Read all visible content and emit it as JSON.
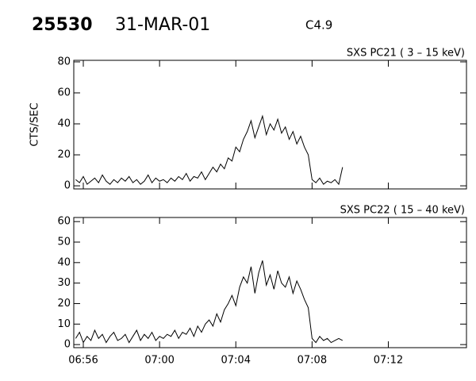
{
  "header": {
    "id": "25530",
    "date": "31-MAR-01",
    "class": "C4.9"
  },
  "chart_data": [
    {
      "type": "line",
      "title": "SXS PC21  ( 3 – 15 keV)",
      "ylabel": "CTS/SEC",
      "x": [
        415.6,
        415.8,
        416.0,
        416.2,
        416.4,
        416.6,
        416.8,
        417.0,
        417.2,
        417.4,
        417.6,
        417.8,
        418.0,
        418.2,
        418.4,
        418.6,
        418.8,
        419.0,
        419.2,
        419.4,
        419.6,
        419.8,
        420.0,
        420.2,
        420.4,
        420.6,
        420.8,
        421.0,
        421.2,
        421.4,
        421.6,
        421.8,
        422.0,
        422.2,
        422.4,
        422.6,
        422.8,
        423.0,
        423.2,
        423.4,
        423.6,
        423.8,
        424.0,
        424.2,
        424.4,
        424.6,
        424.8,
        425.0,
        425.2,
        425.4,
        425.6,
        425.8,
        426.0,
        426.2,
        426.4,
        426.6,
        426.8,
        427.0,
        427.2,
        427.4,
        427.6,
        427.8,
        428.0,
        428.2,
        428.4,
        428.6,
        428.8,
        429.0,
        429.2,
        429.4,
        429.6
      ],
      "series": [
        {
          "color": "#000000",
          "values": [
            4,
            2,
            6,
            1,
            3,
            5,
            2,
            7,
            3,
            1,
            4,
            2,
            5,
            3,
            6,
            2,
            4,
            1,
            3,
            7,
            2,
            5,
            3,
            4,
            2,
            5,
            3,
            6,
            4,
            8,
            3,
            6,
            5,
            9,
            4,
            8,
            12,
            9,
            14,
            11,
            18,
            16,
            25,
            22,
            30,
            35,
            42,
            31,
            38,
            45,
            33,
            40,
            36,
            43,
            34,
            38,
            30,
            35,
            27,
            32,
            25,
            20,
            4,
            2,
            5,
            1,
            3,
            2,
            4,
            1,
            12
          ]
        }
      ],
      "xlim": [
        415.5,
        436.1
      ],
      "xticks": [
        {
          "value": 416,
          "label": "06:56"
        },
        {
          "value": 420,
          "label": "07:00"
        },
        {
          "value": 424,
          "label": "07:04"
        },
        {
          "value": 428,
          "label": "07:08"
        },
        {
          "value": 432,
          "label": "07:12"
        }
      ],
      "ylim": [
        -2,
        81
      ],
      "yticks": [
        0,
        20,
        40,
        60,
        80
      ]
    },
    {
      "type": "line",
      "title": "SXS PC22  ( 15 – 40 keV)",
      "x": [
        415.6,
        415.8,
        416.0,
        416.2,
        416.4,
        416.6,
        416.8,
        417.0,
        417.2,
        417.4,
        417.6,
        417.8,
        418.0,
        418.2,
        418.4,
        418.6,
        418.8,
        419.0,
        419.2,
        419.4,
        419.6,
        419.8,
        420.0,
        420.2,
        420.4,
        420.6,
        420.8,
        421.0,
        421.2,
        421.4,
        421.6,
        421.8,
        422.0,
        422.2,
        422.4,
        422.6,
        422.8,
        423.0,
        423.2,
        423.4,
        423.6,
        423.8,
        424.0,
        424.2,
        424.4,
        424.6,
        424.8,
        425.0,
        425.2,
        425.4,
        425.6,
        425.8,
        426.0,
        426.2,
        426.4,
        426.6,
        426.8,
        427.0,
        427.2,
        427.4,
        427.6,
        427.8,
        428.0,
        428.2,
        428.4,
        428.6,
        428.8,
        429.0,
        429.2,
        429.4,
        429.6
      ],
      "series": [
        {
          "color": "#000000",
          "values": [
            3,
            6,
            1,
            4,
            2,
            7,
            3,
            5,
            1,
            4,
            6,
            2,
            3,
            5,
            1,
            4,
            7,
            2,
            5,
            3,
            6,
            2,
            4,
            3,
            5,
            4,
            7,
            3,
            6,
            5,
            8,
            4,
            9,
            6,
            10,
            12,
            9,
            15,
            11,
            17,
            20,
            24,
            19,
            28,
            33,
            30,
            38,
            25,
            35,
            41,
            29,
            34,
            27,
            36,
            30,
            28,
            33,
            25,
            31,
            27,
            22,
            18,
            3,
            1,
            4,
            2,
            3,
            1,
            2,
            3,
            2
          ]
        }
      ],
      "xlim": [
        415.5,
        436.1
      ],
      "xticks": [
        {
          "value": 416,
          "label": "06:56"
        },
        {
          "value": 420,
          "label": "07:00"
        },
        {
          "value": 424,
          "label": "07:04"
        },
        {
          "value": 428,
          "label": "07:08"
        },
        {
          "value": 432,
          "label": "07:12"
        }
      ],
      "ylim": [
        -1.5,
        62
      ],
      "yticks": [
        0,
        10,
        20,
        30,
        40,
        50,
        60
      ]
    }
  ]
}
